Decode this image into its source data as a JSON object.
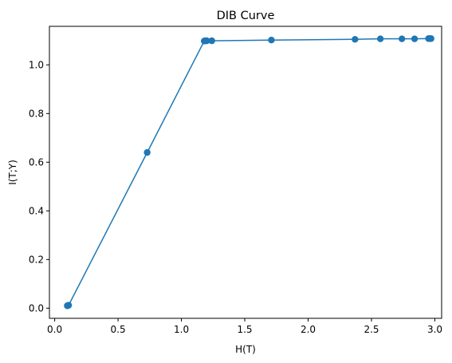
{
  "chart_data": {
    "type": "line",
    "title": "DIB Curve",
    "xlabel": "H(T)",
    "ylabel": "I(T;Y)",
    "xlim": [
      -0.0415,
      3.0535
    ],
    "ylim": [
      -0.0417,
      1.1584
    ],
    "xticks": [
      0.0,
      0.5,
      1.0,
      1.5,
      2.0,
      2.5,
      3.0
    ],
    "xtick_labels": [
      "0.0",
      "0.5",
      "1.0",
      "1.5",
      "2.0",
      "2.5",
      "3.0"
    ],
    "yticks": [
      0.0,
      0.2,
      0.4,
      0.6,
      0.8,
      1.0
    ],
    "ytick_labels": [
      "0.0",
      "0.2",
      "0.4",
      "0.6",
      "0.8",
      "1.0"
    ],
    "grid": false,
    "marker": "circle",
    "color": "#1f77b4",
    "series": [
      {
        "x": [
          0.1,
          0.1,
          0.11,
          0.73,
          1.18,
          1.19,
          1.2,
          1.24,
          1.71,
          2.37,
          2.57,
          2.74,
          2.84,
          2.95,
          2.96,
          2.97
        ],
        "y": [
          0.01,
          0.01,
          0.012,
          0.64,
          1.098,
          1.099,
          1.099,
          1.099,
          1.102,
          1.105,
          1.107,
          1.107,
          1.107,
          1.108,
          1.108,
          1.108
        ]
      }
    ]
  }
}
